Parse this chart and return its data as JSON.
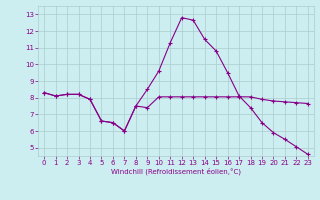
{
  "xlabel": "Windchill (Refroidissement éolien,°C)",
  "line1_x": [
    0,
    1,
    2,
    3,
    4,
    5,
    6,
    7,
    8,
    9,
    10,
    11,
    12,
    13,
    14,
    15,
    16,
    17,
    18,
    19,
    20,
    21,
    22,
    23
  ],
  "line1_y": [
    8.3,
    8.1,
    8.2,
    8.2,
    7.9,
    6.6,
    6.5,
    6.0,
    7.5,
    7.4,
    8.05,
    8.05,
    8.05,
    8.05,
    8.05,
    8.05,
    8.05,
    8.05,
    8.05,
    7.9,
    7.8,
    7.75,
    7.7,
    7.65
  ],
  "line2_x": [
    0,
    1,
    2,
    3,
    4,
    5,
    6,
    7,
    8,
    9,
    10,
    11,
    12,
    13,
    14,
    15,
    16,
    17,
    18,
    19,
    20,
    21,
    22,
    23
  ],
  "line2_y": [
    8.3,
    8.1,
    8.2,
    8.2,
    7.9,
    6.6,
    6.5,
    6.0,
    7.5,
    8.5,
    9.6,
    11.3,
    12.8,
    12.65,
    11.5,
    10.8,
    9.5,
    8.1,
    7.4,
    6.5,
    5.9,
    5.5,
    5.05,
    4.6
  ],
  "line_color": "#880088",
  "bg_color": "#cceef0",
  "grid_color": "#aacccc",
  "ylim": [
    4.5,
    13.5
  ],
  "xlim": [
    -0.5,
    23.5
  ],
  "yticks": [
    5,
    6,
    7,
    8,
    9,
    10,
    11,
    12,
    13
  ],
  "xticks": [
    0,
    1,
    2,
    3,
    4,
    5,
    6,
    7,
    8,
    9,
    10,
    11,
    12,
    13,
    14,
    15,
    16,
    17,
    18,
    19,
    20,
    21,
    22,
    23
  ],
  "marker": "+",
  "markersize": 3,
  "linewidth": 0.8,
  "tick_fontsize": 5,
  "xlabel_fontsize": 5
}
